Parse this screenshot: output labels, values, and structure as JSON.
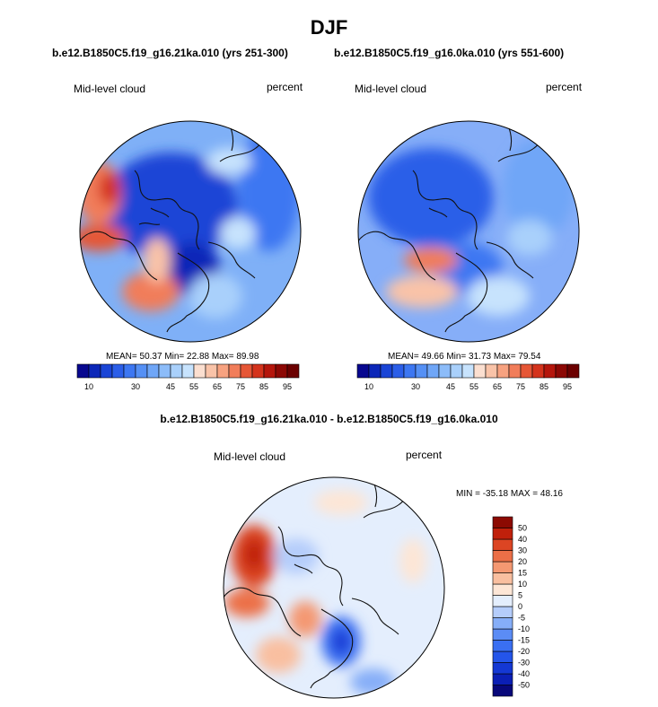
{
  "figure": {
    "title": "DJF",
    "panel_a_case": "b.e12.B1850C5.f19_g16.21ka.010 (yrs 251-300)",
    "panel_b_case": "b.e12.B1850C5.f19_g16.0ka.010 (yrs 551-600)",
    "diff_title": "b.e12.B1850C5.f19_g16.21ka.010 - b.e12.B1850C5.f19_g16.0ka.010"
  },
  "chart_data": [
    {
      "type": "heatmap",
      "projection": "north polar stereographic",
      "variable": "Mid-level cloud",
      "units": "percent",
      "case": "b.e12.B1850C5.f19_g16.21ka.010 (yrs 251-300)",
      "stats": {
        "mean": 50.37,
        "min": 22.88,
        "max": 89.98
      },
      "stats_text": "MEAN=  50.37  Min=  22.88  Max=  89.98",
      "colorbar": {
        "orientation": "horizontal",
        "levels": [
          10,
          15,
          20,
          25,
          30,
          35,
          40,
          45,
          50,
          55,
          60,
          65,
          70,
          75,
          80,
          85,
          90,
          95
        ],
        "tick_labels": [
          "10",
          "30",
          "45",
          "55",
          "65",
          "75",
          "85",
          "95"
        ],
        "colors": [
          "#08088f",
          "#0c27b8",
          "#1a45d6",
          "#2b5ee8",
          "#3d77f2",
          "#5590f5",
          "#6fa6f7",
          "#8cbcf9",
          "#a9d0fb",
          "#c7e3fd",
          "#fbdfd0",
          "#f9c3a8",
          "#f7a280",
          "#f17d5a",
          "#e65636",
          "#d4331c",
          "#b5160c",
          "#8c0804",
          "#6b0000"
        ]
      }
    },
    {
      "type": "heatmap",
      "projection": "north polar stereographic",
      "variable": "Mid-level cloud",
      "units": "percent",
      "case": "b.e12.B1850C5.f19_g16.0ka.010 (yrs 551-600)",
      "stats": {
        "mean": 49.66,
        "min": 31.73,
        "max": 79.54
      },
      "stats_text": "MEAN=  49.66  Min=  31.73  Max=  79.54",
      "colorbar": {
        "orientation": "horizontal",
        "levels": [
          10,
          15,
          20,
          25,
          30,
          35,
          40,
          45,
          50,
          55,
          60,
          65,
          70,
          75,
          80,
          85,
          90,
          95
        ],
        "tick_labels": [
          "10",
          "30",
          "45",
          "55",
          "65",
          "75",
          "85",
          "95"
        ],
        "colors": [
          "#08088f",
          "#0c27b8",
          "#1a45d6",
          "#2b5ee8",
          "#3d77f2",
          "#5590f5",
          "#6fa6f7",
          "#8cbcf9",
          "#a9d0fb",
          "#c7e3fd",
          "#fbdfd0",
          "#f9c3a8",
          "#f7a280",
          "#f17d5a",
          "#e65636",
          "#d4331c",
          "#b5160c",
          "#8c0804",
          "#6b0000"
        ]
      }
    },
    {
      "type": "heatmap",
      "projection": "north polar stereographic",
      "variable": "Mid-level cloud",
      "units": "percent",
      "case": "b.e12.B1850C5.f19_g16.21ka.010 - b.e12.B1850C5.f19_g16.0ka.010",
      "stats": {
        "min": -35.18,
        "max": 48.16
      },
      "stats_text": "MIN = -35.18 MAX =  48.16",
      "colorbar": {
        "orientation": "vertical",
        "levels": [
          -50,
          -40,
          -30,
          -20,
          -15,
          -10,
          -5,
          0,
          5,
          10,
          15,
          20,
          30,
          40,
          50
        ],
        "tick_labels": [
          "-50",
          "-40",
          "-30",
          "-20",
          "-15",
          "-10",
          "-5",
          "0",
          "5",
          "10",
          "15",
          "20",
          "30",
          "40",
          "50"
        ],
        "colors": [
          "#08087a",
          "#0b1fb5",
          "#1438d4",
          "#2455ea",
          "#3a6ff2",
          "#5b8cf5",
          "#86aef8",
          "#b5cdfb",
          "#e4eefd",
          "#fde6d6",
          "#f9bfa0",
          "#f49872",
          "#ec6f47",
          "#dc4523",
          "#c0200b",
          "#8c0a02"
        ]
      }
    }
  ]
}
